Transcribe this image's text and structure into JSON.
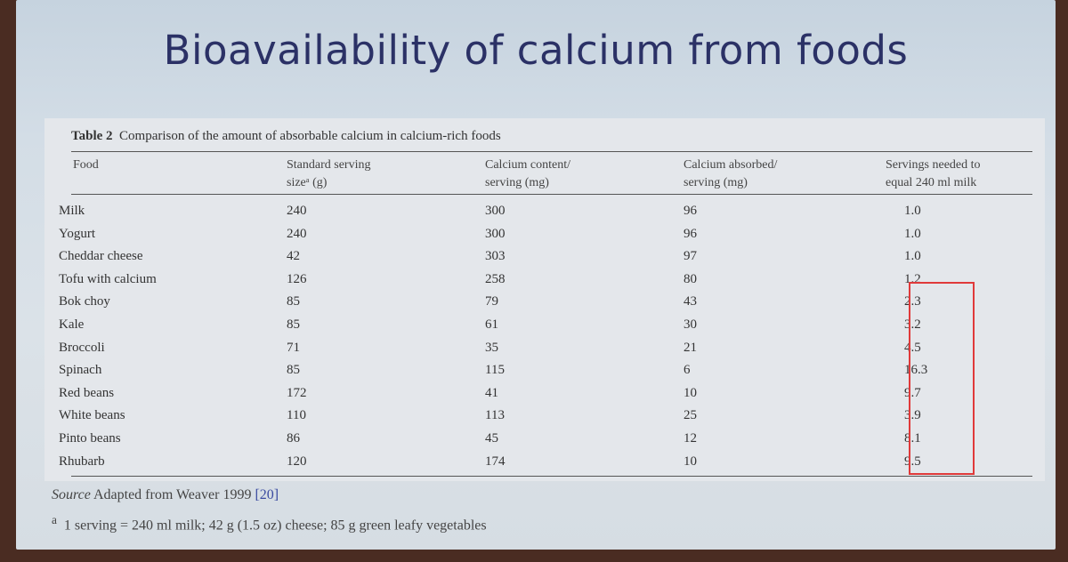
{
  "slide": {
    "title": "Bioavailability of calcium from foods"
  },
  "table": {
    "label": "Table 2",
    "caption": "Comparison of the amount of absorbable calcium in calcium-rich foods",
    "headers": [
      [
        "Food",
        ""
      ],
      [
        "Standard serving",
        "sizeᵃ (g)"
      ],
      [
        "Calcium content/",
        "serving (mg)"
      ],
      [
        "Calcium absorbed/",
        "serving (mg)"
      ],
      [
        "Servings needed to",
        "equal 240 ml milk"
      ]
    ],
    "rows": [
      [
        "Milk",
        "240",
        "300",
        "96",
        "1.0"
      ],
      [
        "Yogurt",
        "240",
        "300",
        "96",
        "1.0"
      ],
      [
        "Cheddar cheese",
        "42",
        "303",
        "97",
        "1.0"
      ],
      [
        "Tofu with calcium",
        "126",
        "258",
        "80",
        "1.2"
      ],
      [
        "Bok choy",
        "85",
        "79",
        "43",
        "2.3"
      ],
      [
        "Kale",
        "85",
        "61",
        "30",
        "3.2"
      ],
      [
        "Broccoli",
        "71",
        "35",
        "21",
        "4.5"
      ],
      [
        "Spinach",
        "85",
        "115",
        "6",
        "16.3"
      ],
      [
        "Red beans",
        "172",
        "41",
        "10",
        "9.7"
      ],
      [
        "White beans",
        "110",
        "113",
        "25",
        "3.9"
      ],
      [
        "Pinto beans",
        "86",
        "45",
        "12",
        "8.1"
      ],
      [
        "Rhubarb",
        "120",
        "174",
        "10",
        "9.5"
      ]
    ]
  },
  "footer": {
    "source_label": "Source",
    "source_text": "Adapted from Weaver 1999",
    "source_ref": "[20]",
    "note_mark": "a",
    "note_text": "1 serving = 240 ml milk; 42 g (1.5 oz) cheese; 85 g green leafy vegetables"
  },
  "colors": {
    "title": "#2b3166",
    "highlight_box": "#e03a3a"
  }
}
